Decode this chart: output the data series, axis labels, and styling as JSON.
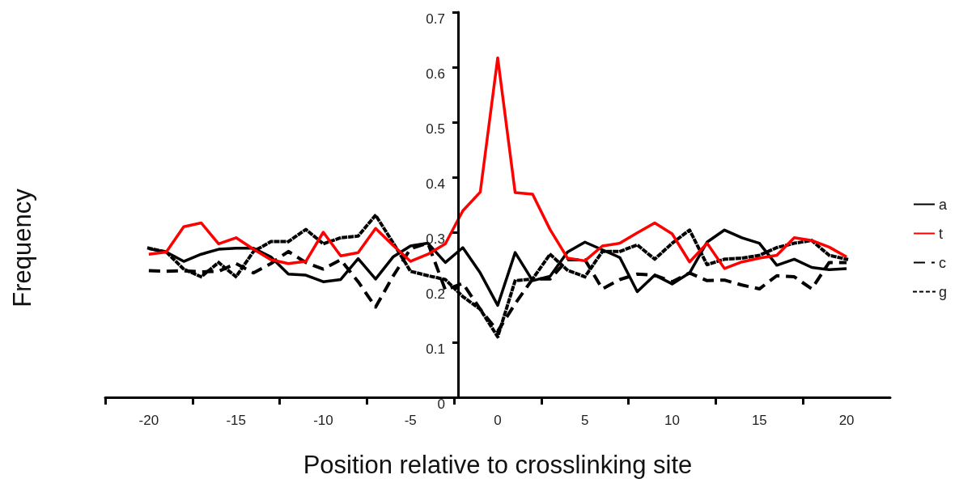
{
  "chart_data": {
    "type": "line",
    "xlabel": "Position relative to crosslinking site",
    "ylabel": "Frequency",
    "x": [
      -20,
      -19,
      -18,
      -17,
      -16,
      -15,
      -14,
      -13,
      -12,
      -11,
      -10,
      -9,
      -8,
      -7,
      -6,
      -5,
      -4,
      -3,
      -2,
      -1,
      0,
      1,
      2,
      3,
      4,
      5,
      6,
      7,
      8,
      9,
      10,
      11,
      12,
      13,
      14,
      15,
      16,
      17,
      18,
      19,
      20
    ],
    "series": [
      {
        "name": "a",
        "color": "#000000",
        "line_style": "solid",
        "values": [
          0.27,
          0.264,
          0.247,
          0.26,
          0.269,
          0.271,
          0.271,
          0.255,
          0.224,
          0.222,
          0.21,
          0.214,
          0.252,
          0.215,
          0.255,
          0.275,
          0.28,
          0.245,
          0.272,
          0.226,
          0.167,
          0.263,
          0.212,
          0.22,
          0.264,
          0.282,
          0.268,
          0.254,
          0.192,
          0.222,
          0.206,
          0.226,
          0.282,
          0.304,
          0.29,
          0.28,
          0.24,
          0.251,
          0.236,
          0.232,
          0.234
        ]
      },
      {
        "name": "t",
        "color": "#ff0000",
        "line_style": "solid",
        "values": [
          0.26,
          0.264,
          0.31,
          0.317,
          0.279,
          0.29,
          0.269,
          0.25,
          0.243,
          0.247,
          0.3,
          0.257,
          0.263,
          0.307,
          0.276,
          0.247,
          0.26,
          0.279,
          0.339,
          0.373,
          0.617,
          0.372,
          0.369,
          0.305,
          0.253,
          0.248,
          0.275,
          0.28,
          0.299,
          0.317,
          0.297,
          0.246,
          0.28,
          0.234,
          0.246,
          0.253,
          0.258,
          0.29,
          0.285,
          0.273,
          0.255
        ]
      },
      {
        "name": "c",
        "color": "#000000",
        "line_style": "dashed",
        "values": [
          0.23,
          0.229,
          0.23,
          0.228,
          0.229,
          0.243,
          0.226,
          0.243,
          0.265,
          0.245,
          0.233,
          0.25,
          0.21,
          0.164,
          0.22,
          0.27,
          0.28,
          0.195,
          0.207,
          0.16,
          0.12,
          0.17,
          0.215,
          0.215,
          0.25,
          0.25,
          0.197,
          0.214,
          0.224,
          0.222,
          0.21,
          0.226,
          0.212,
          0.213,
          0.204,
          0.197,
          0.221,
          0.219,
          0.197,
          0.245,
          0.245
        ]
      },
      {
        "name": "g",
        "color": "#000000",
        "line_style": "dotted",
        "values": [
          0.271,
          0.264,
          0.233,
          0.219,
          0.245,
          0.219,
          0.265,
          0.283,
          0.283,
          0.305,
          0.279,
          0.29,
          0.293,
          0.331,
          0.281,
          0.229,
          0.221,
          0.214,
          0.183,
          0.16,
          0.11,
          0.212,
          0.215,
          0.26,
          0.231,
          0.219,
          0.265,
          0.265,
          0.277,
          0.251,
          0.28,
          0.304,
          0.241,
          0.251,
          0.253,
          0.258,
          0.272,
          0.28,
          0.285,
          0.258,
          0.251
        ]
      }
    ],
    "xlim": [
      -22.5,
      22.5
    ],
    "xticks": [
      {
        "value": -22.5,
        "label": null
      },
      -20,
      {
        "value": -17.5,
        "label": null
      },
      -15,
      {
        "value": -12.5,
        "label": null
      },
      -10,
      {
        "value": -7.5,
        "label": null
      },
      -5,
      {
        "value": -2.5,
        "label": null
      },
      0,
      {
        "value": 2.5,
        "label": null
      },
      5,
      {
        "value": 7.5,
        "label": null
      },
      10,
      {
        "value": 12.5,
        "label": null
      },
      15,
      {
        "value": 17.5,
        "label": null
      },
      20
    ],
    "ylim": [
      0,
      0.7
    ],
    "yticks": [
      0,
      0.1,
      0.2,
      0.3,
      0.4,
      0.5,
      0.6,
      0.7
    ],
    "grid": false,
    "legend": "right",
    "marker": "none"
  }
}
